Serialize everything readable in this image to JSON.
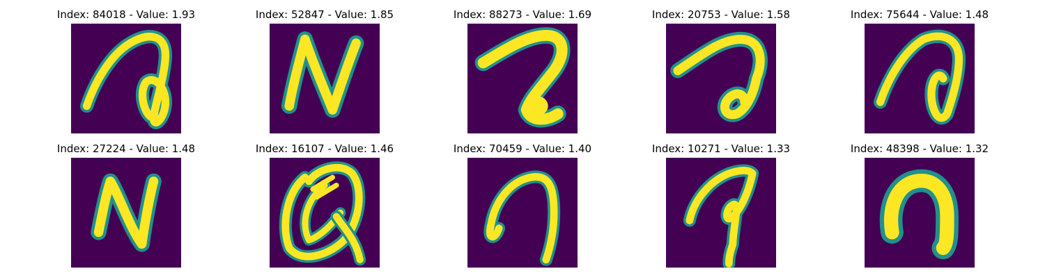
{
  "figure": {
    "panels": [
      {
        "label": "Index: 84018 - Value: 1.93",
        "index": 84018,
        "value": 1.93
      },
      {
        "label": "Index: 52847 - Value: 1.85",
        "index": 52847,
        "value": 1.85
      },
      {
        "label": "Index: 88273 - Value: 1.69",
        "index": 88273,
        "value": 1.69
      },
      {
        "label": "Index: 20753 - Value: 1.58",
        "index": 20753,
        "value": 1.58
      },
      {
        "label": "Index: 75644 - Value: 1.48",
        "index": 75644,
        "value": 1.48
      },
      {
        "label": "Index: 27224 - Value: 1.48",
        "index": 27224,
        "value": 1.48
      },
      {
        "label": "Index: 16107 - Value: 1.46",
        "index": 16107,
        "value": 1.46
      },
      {
        "label": "Index: 70459 - Value: 1.40",
        "index": 70459,
        "value": 1.4
      },
      {
        "label": "Index: 10271 - Value: 1.33",
        "index": 10271,
        "value": 1.33
      },
      {
        "label": "Index: 48398 - Value: 1.32",
        "index": 48398,
        "value": 1.32
      }
    ],
    "colors": {
      "background": "#440154",
      "stroke_edge": "#21918c",
      "stroke_core": "#fde725"
    }
  }
}
